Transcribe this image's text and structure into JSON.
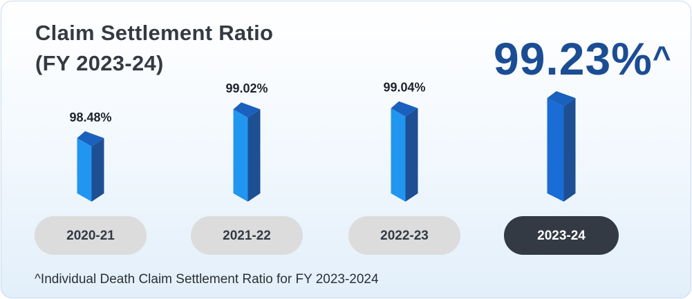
{
  "title": {
    "line1": "Claim Settlement Ratio",
    "line2": "(FY 2023-24)"
  },
  "highlight": {
    "value": "99.23%",
    "marker": "^"
  },
  "footnote": "^Individual Death Claim Settlement Ratio for FY 2023-2024",
  "colors": {
    "bar_front": "#2196f0",
    "bar_side": "#1d4f92",
    "bar_top": "#1a60bd",
    "highlight_bar_front": "#1a6cd6",
    "pill_default": "#dcdcdc",
    "pill_active": "#333a44",
    "pill_text_default": "#333a44",
    "pill_text_active": "#ffffff",
    "highlight_text": "#1b4d94"
  },
  "chart_data": {
    "type": "bar",
    "categories": [
      "2020-21",
      "2021-22",
      "2022-23",
      "2023-24"
    ],
    "values": [
      98.48,
      99.02,
      99.04,
      99.23
    ],
    "value_labels": [
      "98.48%",
      "99.02%",
      "99.04%",
      ""
    ],
    "active_category": "2023-24",
    "title": "Claim Settlement Ratio (FY 2023-24)",
    "ylabel": "",
    "xlabel": ""
  }
}
